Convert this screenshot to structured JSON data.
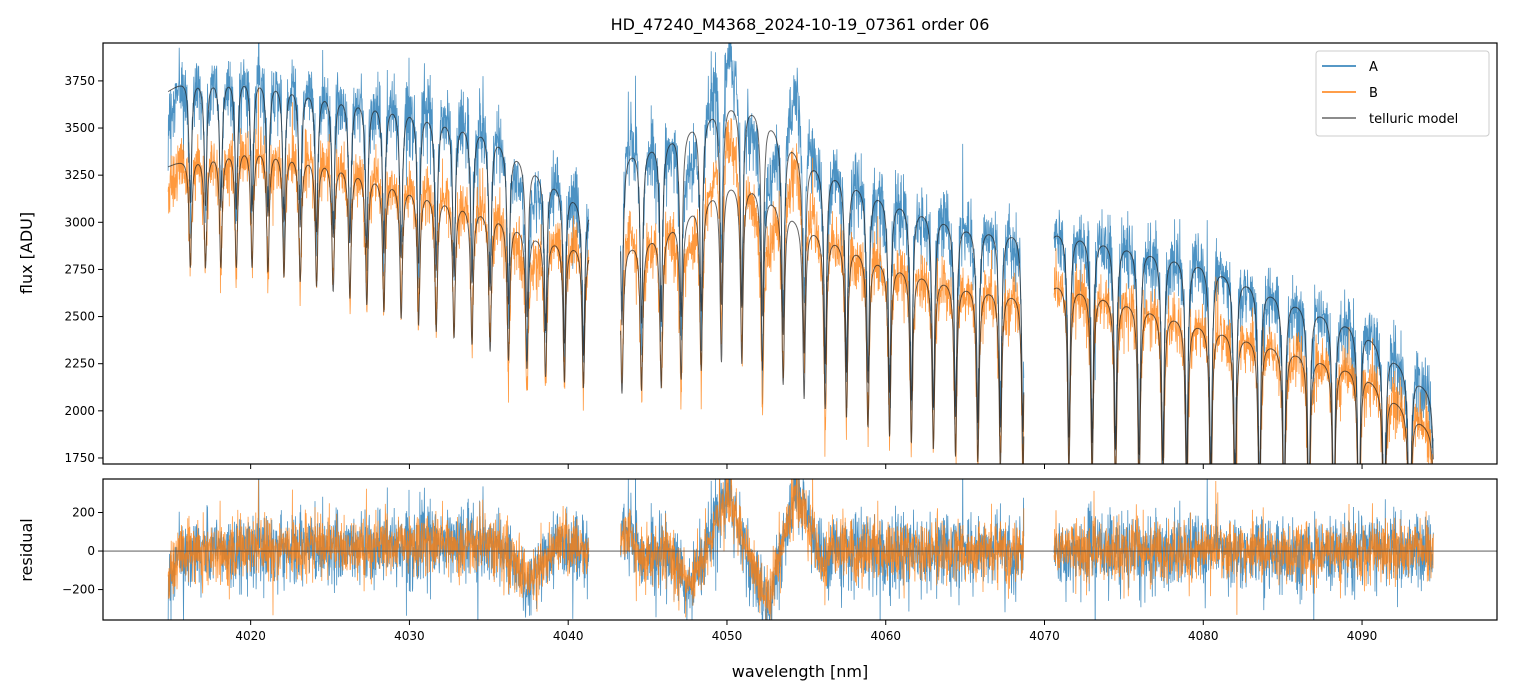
{
  "chart_data": {
    "type": "line",
    "title": "HD_47240_M4368_2024-10-19_07361  order 06",
    "xlabel": "wavelength [nm]",
    "xlim": [
      4010.7,
      4098.5
    ],
    "xticks": [
      4020,
      4030,
      4040,
      4050,
      4060,
      4070,
      4080,
      4090
    ],
    "panels": [
      {
        "name": "flux",
        "ylabel": "flux [ADU]",
        "ylim": [
          1718,
          3951
        ],
        "yticks": [
          1750,
          2000,
          2250,
          2500,
          2750,
          3000,
          3250,
          3500,
          3750
        ]
      },
      {
        "name": "residual",
        "ylabel": "residual",
        "ylim": [
          -358,
          374
        ],
        "yticks": [
          -200,
          0,
          200
        ],
        "zero_line": true
      }
    ],
    "legend": {
      "placement": "top-right",
      "entries": [
        "A",
        "B",
        "telluric model"
      ]
    },
    "colors": {
      "A": "#1f77b4",
      "B": "#ff7f0e",
      "telluric model": "#555555"
    },
    "segments": [
      [
        4014.8,
        4041.3
      ],
      [
        4043.3,
        4068.7
      ],
      [
        4070.6,
        4094.5
      ]
    ],
    "continuum_A": [
      [
        [
          4014.8,
          3700
        ],
        [
          4016,
          3770
        ],
        [
          4020,
          3790
        ],
        [
          4025,
          3700
        ],
        [
          4030,
          3620
        ],
        [
          4035,
          3500
        ],
        [
          4038,
          3300
        ],
        [
          4041.3,
          3100
        ]
      ],
      [
        [
          4043.3,
          3380
        ],
        [
          4046,
          3450
        ],
        [
          4048,
          3550
        ],
        [
          4050,
          3660
        ],
        [
          4052,
          3620
        ],
        [
          4055,
          3350
        ],
        [
          4060,
          3150
        ],
        [
          4065,
          3000
        ],
        [
          4068.7,
          2960
        ]
      ],
      [
        [
          4070.6,
          2980
        ],
        [
          4075,
          2900
        ],
        [
          4080,
          2800
        ],
        [
          4085,
          2620
        ],
        [
          4090,
          2450
        ],
        [
          4094.5,
          2100
        ]
      ]
    ],
    "continuum_B": [
      [
        [
          4014.8,
          3300
        ],
        [
          4016,
          3350
        ],
        [
          4020,
          3420
        ],
        [
          4025,
          3340
        ],
        [
          4030,
          3200
        ],
        [
          4035,
          3070
        ],
        [
          4038,
          2950
        ],
        [
          4041.3,
          2880
        ]
      ],
      [
        [
          4043.3,
          2880
        ],
        [
          4046,
          2960
        ],
        [
          4048,
          3100
        ],
        [
          4050,
          3230
        ],
        [
          4052,
          3200
        ],
        [
          4055,
          3000
        ],
        [
          4060,
          2800
        ],
        [
          4065,
          2680
        ],
        [
          4068.7,
          2630
        ]
      ],
      [
        [
          4070.6,
          2700
        ],
        [
          4075,
          2600
        ],
        [
          4080,
          2470
        ],
        [
          4085,
          2350
        ],
        [
          4090,
          2220
        ],
        [
          4094.5,
          1900
        ]
      ]
    ],
    "telluric_lines": {
      "start": 4016.2,
      "spacing": 0.95,
      "chirp": 0.0055,
      "depth_start": 0.17,
      "depth_end": 0.45,
      "width": 0.1
    },
    "noise_sigma": {
      "A": 95,
      "B": 80
    },
    "residual_trend": [
      [
        4014.8,
        -150
      ],
      [
        4015.6,
        0
      ],
      [
        4035,
        40
      ],
      [
        4036,
        0
      ],
      [
        4037.5,
        -170
      ],
      [
        4039.5,
        60
      ],
      [
        4041.3,
        0
      ],
      [
        4043.3,
        110
      ],
      [
        4045,
        -40
      ],
      [
        4046,
        20
      ],
      [
        4047.6,
        -200
      ],
      [
        4050,
        290
      ],
      [
        4052.5,
        -300
      ],
      [
        4054.4,
        320
      ],
      [
        4056,
        -60
      ],
      [
        4057,
        0
      ],
      [
        4094.5,
        0
      ]
    ]
  }
}
